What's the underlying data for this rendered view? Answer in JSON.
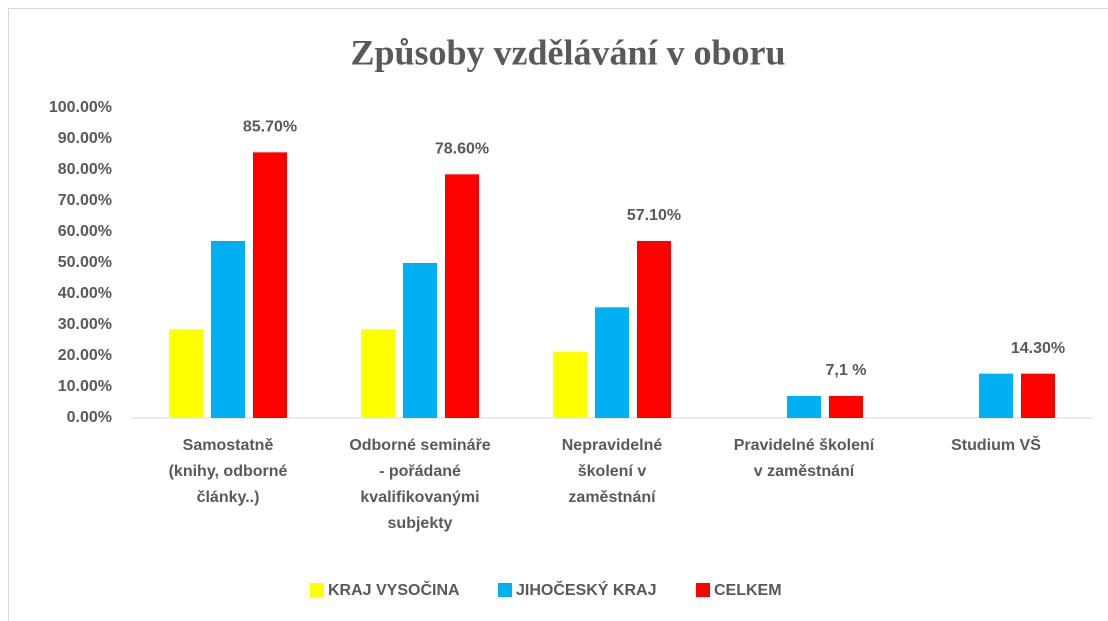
{
  "chart_data": {
    "type": "bar",
    "title": "Způsoby vzdělávání v oboru",
    "categories": [
      "Samostatně\n(knihy, odborné\nčlánky..)",
      "Odborné semináře\n- pořádané\nkvalifikovanými\nsubjekty",
      "Nepravidelné\nškolení v\nzaměstnání",
      "Pravidelné školení\nv zaměstnání",
      "Studium VŠ"
    ],
    "series": [
      {
        "name": "KRAJ VYSOČINA",
        "color": "#ffff00",
        "values": [
          28.6,
          28.6,
          21.4,
          null,
          null
        ]
      },
      {
        "name": "JIHOČESKÝ KRAJ",
        "color": "#00b0f0",
        "values": [
          57.1,
          50,
          35.7,
          7.1,
          14.3
        ]
      },
      {
        "name": "CELKEM",
        "color": "#ff0000",
        "values": [
          85.7,
          78.6,
          57.1,
          7.1,
          14.3
        ],
        "value_labels": [
          "85.70%",
          "78.60%",
          "57.10%",
          "7,1 %",
          "14.30%"
        ]
      }
    ],
    "ylim": [
      0,
      100
    ],
    "yticks": [
      {
        "value": 0,
        "label": "0.00%"
      },
      {
        "value": 10,
        "label": "10.00%"
      },
      {
        "value": 20,
        "label": "20.00%"
      },
      {
        "value": 30,
        "label": "30.00%"
      },
      {
        "value": 40,
        "label": "40.00%"
      },
      {
        "value": 50,
        "label": "50.00%"
      },
      {
        "value": 60,
        "label": "60.00%"
      },
      {
        "value": 70,
        "label": "70.00%"
      },
      {
        "value": 80,
        "label": "80.00%"
      },
      {
        "value": 90,
        "label": "90.00%"
      },
      {
        "value": 100,
        "label": "100.00%"
      }
    ],
    "grid": false,
    "legend": "bottom"
  }
}
